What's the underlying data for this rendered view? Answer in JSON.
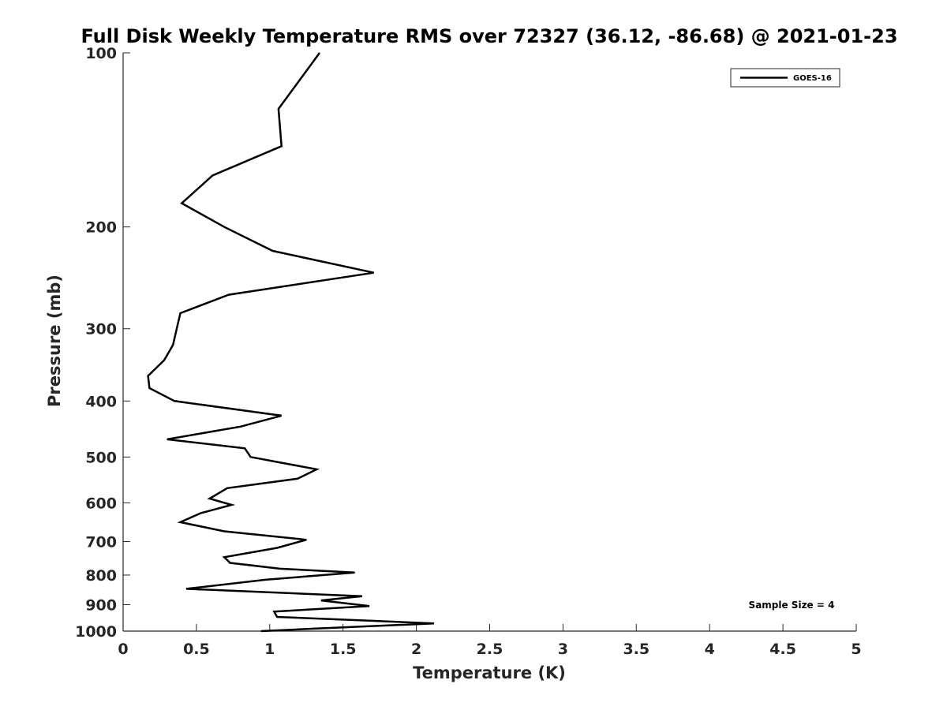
{
  "chart_data": {
    "type": "line",
    "title": "Full Disk Weekly Temperature RMS over 72327 (36.12, -86.68) @ 2021-01-23",
    "xlabel": "Temperature (K)",
    "ylabel": "Pressure (mb)",
    "xlim": [
      0,
      5
    ],
    "ylim": [
      100,
      1000
    ],
    "y_scale": "log",
    "y_reversed": true,
    "grid": false,
    "legend_position": "top-right",
    "xticks": [
      "0",
      "0.5",
      "1",
      "1.5",
      "2",
      "2.5",
      "3",
      "3.5",
      "4",
      "4.5",
      "5"
    ],
    "yticks": [
      "100",
      "200",
      "300",
      "400",
      "500",
      "600",
      "700",
      "800",
      "900",
      "1000"
    ],
    "series": [
      {
        "name": "GOES-16",
        "color": "#000000",
        "points": [
          [
            1.34,
            100
          ],
          [
            1.06,
            125
          ],
          [
            1.08,
            145
          ],
          [
            0.61,
            163
          ],
          [
            0.4,
            182
          ],
          [
            0.69,
            200
          ],
          [
            1.02,
            220
          ],
          [
            1.71,
            240
          ],
          [
            0.72,
            262
          ],
          [
            0.39,
            282
          ],
          [
            0.34,
            320
          ],
          [
            0.28,
            340
          ],
          [
            0.17,
            362
          ],
          [
            0.18,
            380
          ],
          [
            0.35,
            400
          ],
          [
            1.08,
            424
          ],
          [
            0.8,
            443
          ],
          [
            0.3,
            466
          ],
          [
            0.83,
            483
          ],
          [
            0.87,
            500
          ],
          [
            1.32,
            525
          ],
          [
            1.19,
            545
          ],
          [
            0.71,
            566
          ],
          [
            0.59,
            590
          ],
          [
            0.74,
            605
          ],
          [
            0.53,
            625
          ],
          [
            0.39,
            648
          ],
          [
            0.69,
            672
          ],
          [
            1.25,
            695
          ],
          [
            1.05,
            718
          ],
          [
            0.69,
            745
          ],
          [
            0.73,
            762
          ],
          [
            1.07,
            780
          ],
          [
            1.58,
            792
          ],
          [
            0.97,
            815
          ],
          [
            0.43,
            845
          ],
          [
            1.63,
            870
          ],
          [
            1.35,
            885
          ],
          [
            1.68,
            905
          ],
          [
            1.03,
            925
          ],
          [
            1.05,
            945
          ],
          [
            1.71,
            960
          ],
          [
            2.12,
            970
          ],
          [
            1.5,
            985
          ],
          [
            0.94,
            1000
          ]
        ]
      }
    ],
    "annotation": "Sample Size = 4"
  }
}
